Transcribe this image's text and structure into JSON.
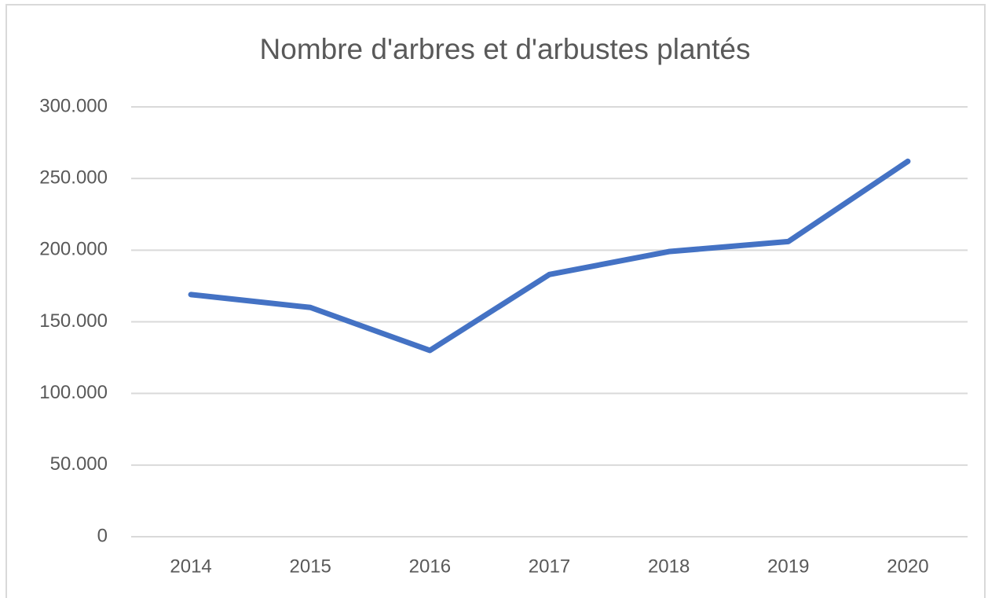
{
  "chart_data": {
    "type": "line",
    "title": "Nombre d'arbres et d'arbustes plantés",
    "categories": [
      "2014",
      "2015",
      "2016",
      "2017",
      "2018",
      "2019",
      "2020"
    ],
    "values": [
      169000,
      160000,
      130000,
      183000,
      199000,
      206000,
      262000
    ],
    "color": "#4472c4",
    "ylim": [
      0,
      300000
    ],
    "yticks": [
      0,
      {
        "value": 50000,
        "label": "50.000"
      },
      {
        "value": 100000,
        "label": "100.000"
      },
      {
        "value": 150000,
        "label": "150.000"
      },
      {
        "value": 200000,
        "label": "200.000"
      },
      {
        "value": 250000,
        "label": "250.000"
      },
      {
        "value": 300000,
        "label": "300.000"
      }
    ],
    "grid": true
  }
}
